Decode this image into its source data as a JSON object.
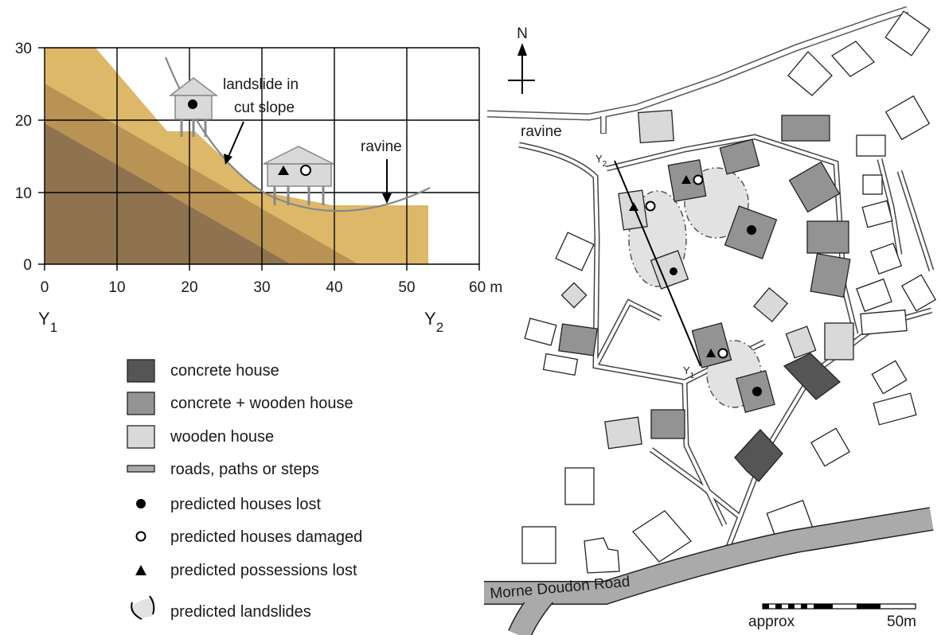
{
  "cross_section": {
    "y_ticks": [
      "30",
      "20",
      "10",
      "0"
    ],
    "x_ticks": [
      "0",
      "10",
      "20",
      "30",
      "40",
      "50",
      "60 m"
    ],
    "annotation_landslide": [
      "landslide in",
      "cut slope"
    ],
    "annotation_ravine": "ravine",
    "end_label_left": "Y",
    "end_label_left_sub": "1",
    "end_label_right": "Y",
    "end_label_right_sub": "2"
  },
  "legend": {
    "items": [
      {
        "label": "concrete house",
        "color": "#555555"
      },
      {
        "label": "concrete + wooden house",
        "color": "#939393"
      },
      {
        "label": "wooden house",
        "color": "#d9d9d9"
      },
      {
        "label": "roads, paths or steps",
        "color": "#aaaaaa"
      },
      {
        "label": "predicted houses lost",
        "icon": "filled-circle-icon"
      },
      {
        "label": "predicted houses damaged",
        "icon": "open-circle-icon"
      },
      {
        "label": "predicted possessions lost",
        "icon": "triangle-icon"
      },
      {
        "label": "predicted landslides",
        "icon": "landslide-outline-icon"
      }
    ]
  },
  "map": {
    "north_label": "N",
    "ravine_label": "ravine",
    "road_label": "Morne Doudon Road",
    "section_label_top": "Y",
    "section_label_top_sub": "2",
    "section_label_bottom": "Y",
    "section_label_bottom_sub": "1",
    "scale_left": "approx",
    "scale_right": "50m"
  },
  "colors": {
    "soil_dark": "#8f7350",
    "soil_mid": "#b99354",
    "soil_light": "#dcb868",
    "concrete": "#555555",
    "mixed": "#939393",
    "wooden": "#d9d9d9",
    "road": "#aaaaaa"
  }
}
